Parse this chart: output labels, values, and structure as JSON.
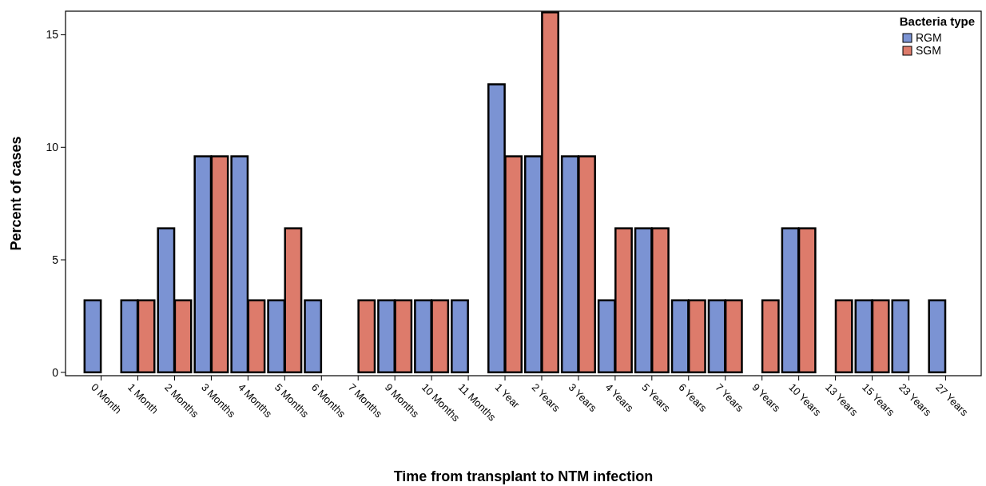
{
  "chart_data": {
    "type": "bar",
    "xlabel": "Time from transplant to NTM infection",
    "ylabel": "Percent of cases",
    "legend_title": "Bacteria type",
    "legend": "top right",
    "categories": [
      "0 Month",
      "1 Month",
      "2 Months",
      "3 Months",
      "4 Months",
      "5 Months",
      "6 Months",
      "7 Months",
      "9 Months",
      "10 Months",
      "11 Months",
      "1 Year",
      "2 Years",
      "3 Years",
      "4 Years",
      "5 Years",
      "6 Years",
      "7 Years",
      "9 Years",
      "10 Years",
      "13 Years",
      "15 Years",
      "23 Years",
      "27 Years"
    ],
    "series": [
      {
        "name": "RGM",
        "color": "#7b93d3",
        "values": [
          3.2,
          3.2,
          6.4,
          9.6,
          9.6,
          3.2,
          3.2,
          null,
          3.2,
          3.2,
          3.2,
          12.8,
          9.6,
          9.6,
          3.2,
          6.4,
          3.2,
          3.2,
          null,
          6.4,
          null,
          3.2,
          3.2,
          3.2
        ]
      },
      {
        "name": "SGM",
        "color": "#dd7b6b",
        "values": [
          null,
          3.2,
          3.2,
          9.6,
          3.2,
          6.4,
          null,
          3.2,
          3.2,
          3.2,
          null,
          9.6,
          16,
          9.6,
          6.4,
          6.4,
          3.2,
          3.2,
          3.2,
          6.4,
          3.2,
          3.2,
          null,
          null
        ]
      }
    ],
    "ylim": [
      -0.15,
      16.05
    ],
    "yticks": [
      0,
      5,
      10,
      15
    ]
  }
}
